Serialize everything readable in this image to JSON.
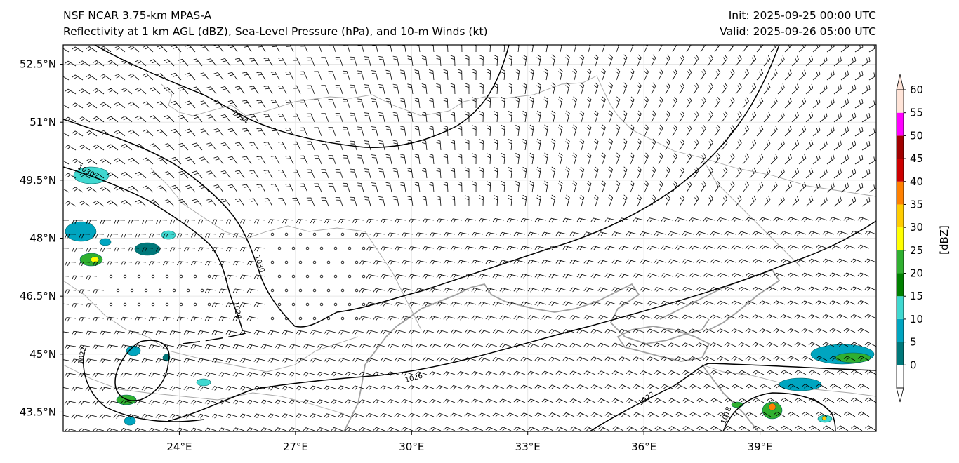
{
  "header": {
    "title_line1": "NSF NCAR 3.75-km MPAS-A",
    "title_line2": "Reflectivity at 1 km AGL (dBZ), Sea-Level Pressure (hPa), and 10-m Winds (kt)",
    "init": "Init: 2025-09-25 00:00 UTC",
    "valid": "Valid: 2025-09-26 05:00 UTC"
  },
  "map": {
    "lon_range": [
      21,
      42
    ],
    "lat_range": [
      43,
      53
    ],
    "lat_ticks": [
      {
        "value": 52.5,
        "label": "52.5°N"
      },
      {
        "value": 51,
        "label": "51°N"
      },
      {
        "value": 49.5,
        "label": "49.5°N"
      },
      {
        "value": 48,
        "label": "48°N"
      },
      {
        "value": 46.5,
        "label": "46.5°N"
      },
      {
        "value": 45,
        "label": "45°N"
      },
      {
        "value": 43.5,
        "label": "43.5°N"
      }
    ],
    "lon_ticks": [
      {
        "value": 24,
        "label": "24°E"
      },
      {
        "value": 27,
        "label": "27°E"
      },
      {
        "value": 30,
        "label": "30°E"
      },
      {
        "value": 33,
        "label": "33°E"
      },
      {
        "value": 36,
        "label": "36°E"
      },
      {
        "value": 39,
        "label": "39°E"
      }
    ],
    "isobar_labels": [
      "1034",
      "1030",
      "1030",
      "1026",
      "1026",
      "1022",
      "1022",
      "1018"
    ]
  },
  "colorbar": {
    "label": "[dBZ]",
    "ticks": [
      "0",
      "5",
      "10",
      "15",
      "20",
      "25",
      "30",
      "35",
      "40",
      "45",
      "50",
      "55",
      "60"
    ],
    "colors": [
      "#ffffff",
      "#00787a",
      "#00a5c0",
      "#40d8d0",
      "#008000",
      "#30b030",
      "#ffff00",
      "#ffcc00",
      "#ff8000",
      "#cc0000",
      "#a00000",
      "#ff00ff",
      "#ffe4d8"
    ]
  }
}
